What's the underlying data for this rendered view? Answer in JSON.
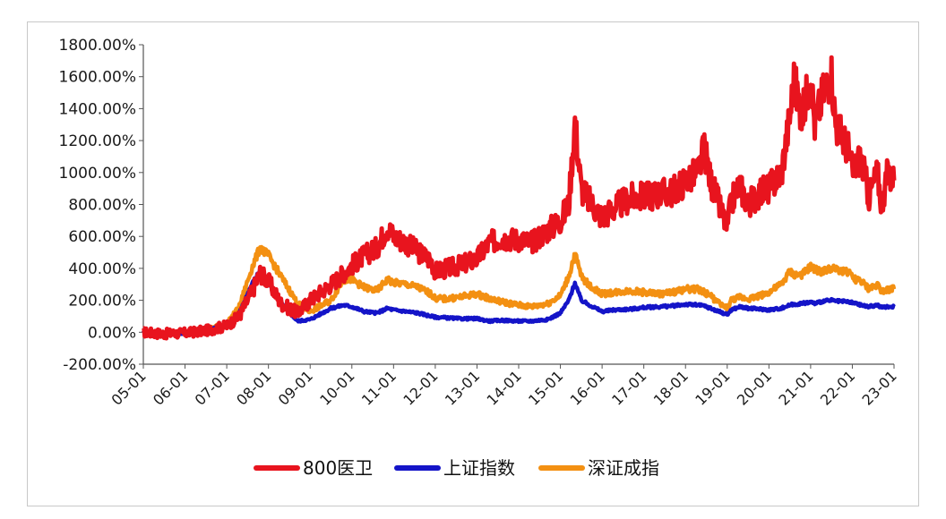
{
  "chart_data": {
    "type": "line",
    "title": "",
    "xlabel": "",
    "ylabel": "",
    "x_tick_labels": [
      "05-01",
      "06-01",
      "07-01",
      "08-01",
      "09-01",
      "10-01",
      "11-01",
      "12-01",
      "13-01",
      "14-01",
      "15-01",
      "16-01",
      "17-01",
      "18-01",
      "19-01",
      "20-01",
      "21-01",
      "22-01",
      "23-01"
    ],
    "y_tick_labels": [
      "-200.00%",
      "0.00%",
      "200.00%",
      "400.00%",
      "600.00%",
      "800.00%",
      "1000.00%",
      "1200.00%",
      "1400.00%",
      "1600.00%",
      "1800.00%"
    ],
    "ylim": [
      -200,
      1800
    ],
    "xlim": [
      2005.0,
      2023.0
    ],
    "grid": false,
    "legend_position": "bottom",
    "series": [
      {
        "name": "800医卫",
        "color": "#e8141e",
        "points": [
          [
            2005.0,
            0
          ],
          [
            2005.5,
            -10
          ],
          [
            2006.0,
            -5
          ],
          [
            2006.5,
            10
          ],
          [
            2007.0,
            40
          ],
          [
            2007.3,
            100
          ],
          [
            2007.6,
            250
          ],
          [
            2007.8,
            370
          ],
          [
            2008.0,
            320
          ],
          [
            2008.3,
            180
          ],
          [
            2008.7,
            120
          ],
          [
            2009.0,
            200
          ],
          [
            2009.5,
            300
          ],
          [
            2009.8,
            370
          ],
          [
            2010.0,
            420
          ],
          [
            2010.3,
            480
          ],
          [
            2010.6,
            530
          ],
          [
            2010.85,
            660
          ],
          [
            2011.0,
            600
          ],
          [
            2011.3,
            560
          ],
          [
            2011.6,
            500
          ],
          [
            2011.9,
            450
          ],
          [
            2012.0,
            380
          ],
          [
            2012.3,
            400
          ],
          [
            2012.6,
            420
          ],
          [
            2013.0,
            460
          ],
          [
            2013.3,
            560
          ],
          [
            2013.6,
            590
          ],
          [
            2014.0,
            580
          ],
          [
            2014.3,
            560
          ],
          [
            2014.7,
            640
          ],
          [
            2015.0,
            700
          ],
          [
            2015.2,
            800
          ],
          [
            2015.35,
            1320
          ],
          [
            2015.5,
            900
          ],
          [
            2015.7,
            820
          ],
          [
            2016.0,
            720
          ],
          [
            2016.3,
            780
          ],
          [
            2016.7,
            840
          ],
          [
            2017.0,
            850
          ],
          [
            2017.4,
            870
          ],
          [
            2017.7,
            880
          ],
          [
            2018.0,
            950
          ],
          [
            2018.3,
            1000
          ],
          [
            2018.45,
            1150
          ],
          [
            2018.6,
            950
          ],
          [
            2018.8,
            800
          ],
          [
            2019.0,
            650
          ],
          [
            2019.1,
            820
          ],
          [
            2019.3,
            920
          ],
          [
            2019.5,
            800
          ],
          [
            2019.8,
            880
          ],
          [
            2020.0,
            900
          ],
          [
            2020.3,
            1000
          ],
          [
            2020.5,
            1350
          ],
          [
            2020.6,
            1580
          ],
          [
            2020.8,
            1350
          ],
          [
            2021.0,
            1620
          ],
          [
            2021.1,
            1300
          ],
          [
            2021.3,
            1500
          ],
          [
            2021.5,
            1620
          ],
          [
            2021.6,
            1300
          ],
          [
            2021.9,
            1150
          ],
          [
            2022.0,
            1000
          ],
          [
            2022.2,
            1100
          ],
          [
            2022.4,
            850
          ],
          [
            2022.6,
            1000
          ],
          [
            2022.7,
            800
          ],
          [
            2022.85,
            1000
          ],
          [
            2023.0,
            950
          ]
        ]
      },
      {
        "name": "上证指数",
        "color": "#1414c8",
        "points": [
          [
            2005.0,
            0
          ],
          [
            2005.5,
            -10
          ],
          [
            2006.0,
            -5
          ],
          [
            2006.5,
            15
          ],
          [
            2007.0,
            40
          ],
          [
            2007.3,
            120
          ],
          [
            2007.6,
            300
          ],
          [
            2007.8,
            390
          ],
          [
            2008.0,
            320
          ],
          [
            2008.3,
            180
          ],
          [
            2008.7,
            70
          ],
          [
            2009.0,
            80
          ],
          [
            2009.5,
            150
          ],
          [
            2009.8,
            170
          ],
          [
            2010.0,
            160
          ],
          [
            2010.3,
            130
          ],
          [
            2010.6,
            120
          ],
          [
            2010.85,
            150
          ],
          [
            2011.0,
            140
          ],
          [
            2011.3,
            130
          ],
          [
            2011.6,
            120
          ],
          [
            2011.9,
            100
          ],
          [
            2012.0,
            95
          ],
          [
            2012.3,
            90
          ],
          [
            2012.6,
            85
          ],
          [
            2013.0,
            85
          ],
          [
            2013.3,
            70
          ],
          [
            2013.6,
            75
          ],
          [
            2014.0,
            70
          ],
          [
            2014.3,
            70
          ],
          [
            2014.7,
            80
          ],
          [
            2015.0,
            120
          ],
          [
            2015.2,
            200
          ],
          [
            2015.35,
            310
          ],
          [
            2015.5,
            200
          ],
          [
            2015.7,
            170
          ],
          [
            2016.0,
            130
          ],
          [
            2016.3,
            140
          ],
          [
            2016.7,
            145
          ],
          [
            2017.0,
            155
          ],
          [
            2017.4,
            160
          ],
          [
            2017.7,
            165
          ],
          [
            2018.0,
            175
          ],
          [
            2018.3,
            170
          ],
          [
            2018.45,
            165
          ],
          [
            2018.6,
            150
          ],
          [
            2018.8,
            130
          ],
          [
            2019.0,
            110
          ],
          [
            2019.1,
            140
          ],
          [
            2019.3,
            160
          ],
          [
            2019.5,
            150
          ],
          [
            2019.8,
            145
          ],
          [
            2020.0,
            140
          ],
          [
            2020.3,
            150
          ],
          [
            2020.5,
            170
          ],
          [
            2020.6,
            175
          ],
          [
            2020.8,
            180
          ],
          [
            2021.0,
            190
          ],
          [
            2021.1,
            180
          ],
          [
            2021.3,
            195
          ],
          [
            2021.5,
            200
          ],
          [
            2021.6,
            195
          ],
          [
            2021.9,
            190
          ],
          [
            2022.0,
            185
          ],
          [
            2022.2,
            170
          ],
          [
            2022.4,
            160
          ],
          [
            2022.6,
            170
          ],
          [
            2022.7,
            155
          ],
          [
            2022.85,
            160
          ],
          [
            2023.0,
            160
          ]
        ]
      },
      {
        "name": "深证成指",
        "color": "#f39012",
        "points": [
          [
            2005.0,
            0
          ],
          [
            2005.5,
            -10
          ],
          [
            2006.0,
            -5
          ],
          [
            2006.5,
            20
          ],
          [
            2007.0,
            50
          ],
          [
            2007.3,
            160
          ],
          [
            2007.6,
            400
          ],
          [
            2007.8,
            530
          ],
          [
            2008.0,
            480
          ],
          [
            2008.3,
            350
          ],
          [
            2008.7,
            180
          ],
          [
            2009.0,
            130
          ],
          [
            2009.5,
            200
          ],
          [
            2009.8,
            330
          ],
          [
            2010.0,
            330
          ],
          [
            2010.3,
            280
          ],
          [
            2010.6,
            260
          ],
          [
            2010.85,
            330
          ],
          [
            2011.0,
            310
          ],
          [
            2011.3,
            300
          ],
          [
            2011.6,
            280
          ],
          [
            2011.9,
            240
          ],
          [
            2012.0,
            210
          ],
          [
            2012.3,
            210
          ],
          [
            2012.6,
            220
          ],
          [
            2013.0,
            240
          ],
          [
            2013.3,
            210
          ],
          [
            2013.6,
            190
          ],
          [
            2014.0,
            170
          ],
          [
            2014.3,
            160
          ],
          [
            2014.7,
            180
          ],
          [
            2015.0,
            230
          ],
          [
            2015.2,
            350
          ],
          [
            2015.35,
            490
          ],
          [
            2015.5,
            350
          ],
          [
            2015.7,
            290
          ],
          [
            2016.0,
            240
          ],
          [
            2016.3,
            250
          ],
          [
            2016.7,
            260
          ],
          [
            2017.0,
            250
          ],
          [
            2017.4,
            240
          ],
          [
            2017.7,
            250
          ],
          [
            2018.0,
            270
          ],
          [
            2018.3,
            270
          ],
          [
            2018.45,
            250
          ],
          [
            2018.6,
            230
          ],
          [
            2018.8,
            180
          ],
          [
            2019.0,
            150
          ],
          [
            2019.1,
            200
          ],
          [
            2019.3,
            220
          ],
          [
            2019.5,
            210
          ],
          [
            2019.8,
            230
          ],
          [
            2020.0,
            250
          ],
          [
            2020.3,
            300
          ],
          [
            2020.5,
            380
          ],
          [
            2020.6,
            360
          ],
          [
            2020.8,
            360
          ],
          [
            2021.0,
            410
          ],
          [
            2021.1,
            390
          ],
          [
            2021.3,
            380
          ],
          [
            2021.5,
            400
          ],
          [
            2021.6,
            390
          ],
          [
            2021.9,
            380
          ],
          [
            2022.0,
            340
          ],
          [
            2022.2,
            320
          ],
          [
            2022.4,
            270
          ],
          [
            2022.6,
            300
          ],
          [
            2022.7,
            260
          ],
          [
            2022.85,
            270
          ],
          [
            2023.0,
            270
          ]
        ]
      }
    ]
  }
}
